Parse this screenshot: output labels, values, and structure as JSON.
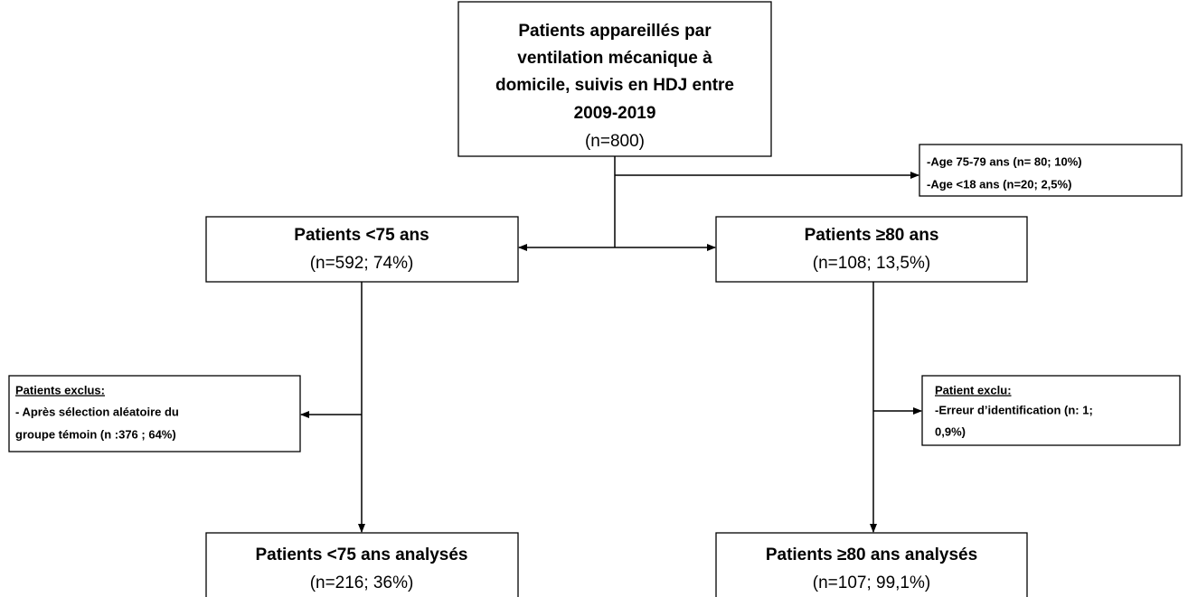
{
  "nodes": [
    {
      "title": [
        "Patients appareillés par",
        "ventilation mécanique à",
        "domicile, suivis en HDJ entre",
        "2009-2019"
      ],
      "count": "(n=800)"
    },
    {
      "lines": [
        "-Age 75-79 ans (n= 80; 10%)",
        "-Age <18 ans  (n=20; 2,5%)"
      ]
    },
    {
      "title": [
        "Patients <75 ans"
      ],
      "count": "(n=592; 74%)"
    },
    {
      "title": [
        "Patients ≥80 ans"
      ],
      "count": "(n=108; 13,5%)"
    },
    {
      "heading": "Patients exclus:",
      "lines": [
        "- Après sélection aléatoire du",
        "groupe témoin (n :376 ; 64%)"
      ]
    },
    {
      "heading": "Patient exclu:",
      "lines": [
        "-Erreur d’identification (n: 1;",
        "0,9%)"
      ]
    },
    {
      "title": [
        "Patients <75 ans analysés"
      ],
      "count": "(n=216; 36%)"
    },
    {
      "title": [
        "Patients ≥80 ans analysés"
      ],
      "count": "(n=107; 99,1%)"
    }
  ]
}
